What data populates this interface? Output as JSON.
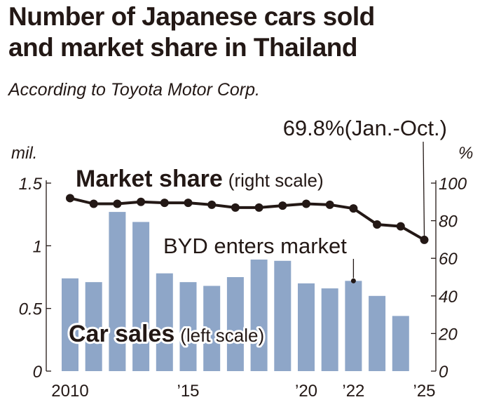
{
  "header": {
    "title_line1": "Number of Japanese cars sold",
    "title_line2": "and market share in Thailand",
    "source": "According to Toyota Motor Corp."
  },
  "colors": {
    "bar": "#8ea6c8",
    "line": "#231815",
    "text": "#231815"
  },
  "chart_data": {
    "type": "bar",
    "x": [
      2010,
      2011,
      2012,
      2013,
      2014,
      2015,
      2016,
      2017,
      2018,
      2019,
      2020,
      2021,
      2022,
      2023,
      2024,
      2025
    ],
    "x_tick_labels": [
      {
        "x": 2010,
        "label": "2010"
      },
      {
        "x": 2015,
        "label": "’15"
      },
      {
        "x": 2020,
        "label": "’20"
      },
      {
        "x": 2022,
        "label": "’22"
      },
      {
        "x": 2025,
        "label": "’25"
      }
    ],
    "series": [
      {
        "name": "Car sales",
        "label_note": "(left scale)",
        "type": "bar",
        "axis": "left",
        "values": [
          0.74,
          0.71,
          1.27,
          1.19,
          0.78,
          0.71,
          0.68,
          0.75,
          0.89,
          0.88,
          0.7,
          0.66,
          0.72,
          0.6,
          0.44,
          null
        ]
      },
      {
        "name": "Market share",
        "label_note": "(right scale)",
        "type": "line",
        "axis": "right",
        "values": [
          92,
          89,
          89,
          90,
          89.5,
          89.5,
          88.5,
          87,
          87,
          88,
          89,
          88.5,
          86.5,
          78,
          77,
          69.8
        ]
      }
    ],
    "left_axis": {
      "unit": "mil.",
      "ticks": [
        "0",
        "0.5",
        "1",
        "1.5"
      ],
      "range": [
        0,
        1.5
      ]
    },
    "right_axis": {
      "unit": "%",
      "ticks": [
        "0",
        "20",
        "40",
        "60",
        "80",
        "100"
      ],
      "range": [
        0,
        100
      ]
    },
    "annotations": {
      "byd": "BYD enters market",
      "byd_year": 2022,
      "last_value": "69.8%(Jan.-Oct.)"
    }
  }
}
